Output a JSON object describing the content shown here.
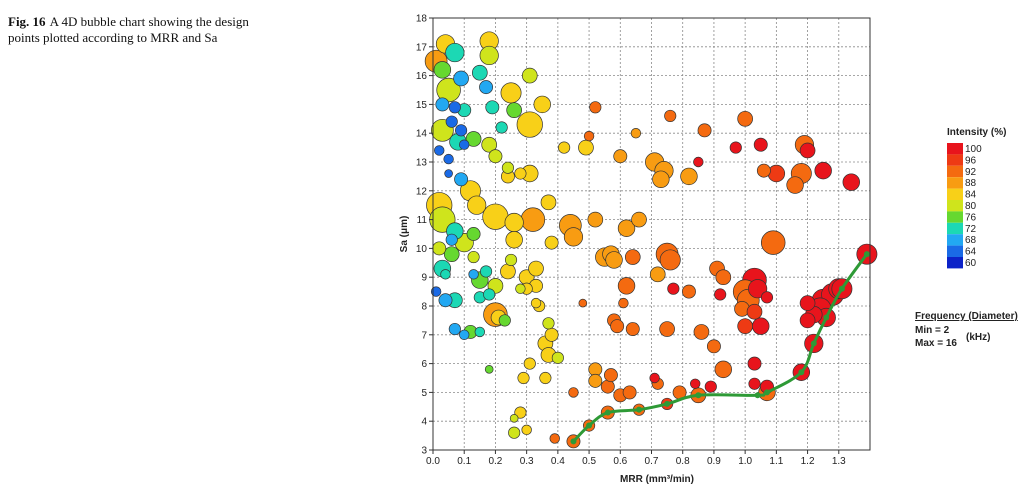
{
  "caption": {
    "label": "Fig. 16",
    "text": "A 4D bubble chart showing the design points plotted according to MRR and Sa"
  },
  "chart_data": {
    "type": "scatter",
    "xlabel": "MRR (mm³/min)",
    "ylabel": "Sa (μm)",
    "xlim": [
      0,
      1.4
    ],
    "ylim": [
      3,
      18
    ],
    "x_ticks": [
      "0.0",
      "0.1",
      "0.2",
      "0.3",
      "0.4",
      "0.5",
      "0.6",
      "0.7",
      "0.8",
      "0.9",
      "1.0",
      "1.1",
      "1.2",
      "1.3"
    ],
    "y_ticks": [
      "3",
      "4",
      "5",
      "6",
      "7",
      "8",
      "9",
      "10",
      "11",
      "12",
      "13",
      "14",
      "15",
      "16",
      "17",
      "18"
    ],
    "grid": true,
    "color_legend": {
      "title": "Intensity (%)",
      "labels": [
        "100",
        "96",
        "92",
        "88",
        "84",
        "80",
        "76",
        "72",
        "68",
        "64",
        "60"
      ],
      "colors": [
        "#e8141c",
        "#ee3a14",
        "#f46a10",
        "#f89c12",
        "#f8d018",
        "#cfe41c",
        "#66d830",
        "#1cd8b4",
        "#22a8f2",
        "#1a6ae6",
        "#0c22c8"
      ]
    },
    "size_legend": {
      "title": "Frequency (Diameter)",
      "min_label": "Min = 2",
      "max_label": "Max = 16",
      "unit": "(kHz)"
    },
    "pareto_front": [
      [
        0.45,
        3.3
      ],
      [
        0.5,
        3.85
      ],
      [
        0.56,
        4.3
      ],
      [
        0.66,
        4.4
      ],
      [
        0.75,
        4.6
      ],
      [
        0.85,
        4.9
      ],
      [
        1.04,
        4.9
      ],
      [
        1.07,
        5.0
      ],
      [
        1.18,
        5.7
      ],
      [
        1.22,
        6.7
      ],
      [
        1.26,
        7.6
      ],
      [
        1.31,
        8.6
      ],
      [
        1.39,
        9.8
      ]
    ],
    "points": [
      [
        0.01,
        16.5,
        88,
        10
      ],
      [
        0.04,
        17.1,
        84,
        8
      ],
      [
        0.07,
        16.8,
        72,
        8
      ],
      [
        0.03,
        16.2,
        76,
        7
      ],
      [
        0.09,
        15.9,
        68,
        6
      ],
      [
        0.05,
        15.5,
        80,
        11
      ],
      [
        0.03,
        15.0,
        68,
        5
      ],
      [
        0.07,
        14.9,
        64,
        4
      ],
      [
        0.1,
        14.8,
        72,
        5
      ],
      [
        0.06,
        14.4,
        64,
        4
      ],
      [
        0.09,
        14.1,
        64,
        4
      ],
      [
        0.03,
        14.1,
        80,
        10
      ],
      [
        0.08,
        13.7,
        72,
        7
      ],
      [
        0.13,
        13.8,
        76,
        6
      ],
      [
        0.1,
        13.6,
        64,
        3
      ],
      [
        0.02,
        13.4,
        64,
        3
      ],
      [
        0.05,
        13.1,
        64,
        3
      ],
      [
        0.05,
        12.6,
        64,
        2
      ],
      [
        0.09,
        12.4,
        68,
        5
      ],
      [
        0.18,
        17.2,
        84,
        8
      ],
      [
        0.18,
        16.7,
        80,
        8
      ],
      [
        0.15,
        16.1,
        72,
        6
      ],
      [
        0.17,
        15.6,
        68,
        5
      ],
      [
        0.31,
        16.0,
        80,
        6
      ],
      [
        0.25,
        15.4,
        84,
        9
      ],
      [
        0.19,
        14.9,
        72,
        5
      ],
      [
        0.26,
        14.8,
        76,
        6
      ],
      [
        0.35,
        15.0,
        84,
        7
      ],
      [
        0.22,
        14.2,
        72,
        4
      ],
      [
        0.31,
        14.3,
        84,
        12
      ],
      [
        0.18,
        13.6,
        80,
        6
      ],
      [
        0.2,
        13.2,
        80,
        5
      ],
      [
        0.24,
        12.8,
        80,
        4
      ],
      [
        0.28,
        12.6,
        84,
        4
      ],
      [
        0.02,
        11.5,
        84,
        12
      ],
      [
        0.03,
        11.0,
        80,
        12
      ],
      [
        0.12,
        12.0,
        84,
        9
      ],
      [
        0.14,
        11.5,
        84,
        8
      ],
      [
        0.07,
        10.6,
        72,
        7
      ],
      [
        0.06,
        10.3,
        68,
        4
      ],
      [
        0.1,
        10.2,
        80,
        8
      ],
      [
        0.13,
        10.5,
        76,
        5
      ],
      [
        0.2,
        11.1,
        84,
        12
      ],
      [
        0.26,
        10.9,
        84,
        8
      ],
      [
        0.26,
        10.3,
        84,
        7
      ],
      [
        0.24,
        12.5,
        84,
        5
      ],
      [
        0.31,
        12.6,
        84,
        7
      ],
      [
        0.37,
        11.6,
        84,
        6
      ],
      [
        0.32,
        11.0,
        88,
        11
      ],
      [
        0.38,
        10.2,
        84,
        5
      ],
      [
        0.02,
        10.0,
        80,
        5
      ],
      [
        0.03,
        9.3,
        72,
        7
      ],
      [
        0.04,
        9.1,
        72,
        3
      ],
      [
        0.06,
        9.8,
        76,
        6
      ],
      [
        0.13,
        9.7,
        80,
        4
      ],
      [
        0.13,
        9.1,
        68,
        3
      ],
      [
        0.15,
        8.9,
        76,
        7
      ],
      [
        0.17,
        9.2,
        72,
        4
      ],
      [
        0.2,
        8.7,
        80,
        6
      ],
      [
        0.25,
        9.6,
        80,
        4
      ],
      [
        0.24,
        9.2,
        84,
        6
      ],
      [
        0.3,
        9.0,
        84,
        6
      ],
      [
        0.33,
        9.3,
        84,
        6
      ],
      [
        0.33,
        8.7,
        84,
        5
      ],
      [
        0.3,
        8.6,
        84,
        4
      ],
      [
        0.28,
        8.6,
        80,
        3
      ],
      [
        0.01,
        8.5,
        64,
        3
      ],
      [
        0.04,
        8.2,
        68,
        5
      ],
      [
        0.07,
        8.2,
        72,
        6
      ],
      [
        0.15,
        8.3,
        72,
        4
      ],
      [
        0.18,
        8.4,
        72,
        4
      ],
      [
        0.2,
        7.7,
        88,
        11
      ],
      [
        0.21,
        7.6,
        84,
        6
      ],
      [
        0.34,
        8.0,
        84,
        4
      ],
      [
        0.33,
        8.1,
        84,
        3
      ],
      [
        0.23,
        7.5,
        76,
        4
      ],
      [
        0.37,
        7.4,
        80,
        4
      ],
      [
        0.38,
        7.0,
        84,
        5
      ],
      [
        0.36,
        6.7,
        84,
        6
      ],
      [
        0.07,
        7.2,
        68,
        4
      ],
      [
        0.12,
        7.1,
        76,
        5
      ],
      [
        0.1,
        7.0,
        68,
        3
      ],
      [
        0.15,
        7.1,
        72,
        3
      ],
      [
        0.37,
        6.3,
        84,
        6
      ],
      [
        0.4,
        6.2,
        80,
        4
      ],
      [
        0.31,
        6.0,
        84,
        4
      ],
      [
        0.18,
        5.8,
        76,
        2
      ],
      [
        0.29,
        5.5,
        84,
        4
      ],
      [
        0.36,
        5.5,
        84,
        4
      ],
      [
        0.28,
        4.3,
        84,
        4
      ],
      [
        0.26,
        4.1,
        80,
        2
      ],
      [
        0.26,
        3.6,
        80,
        4
      ],
      [
        0.3,
        3.7,
        84,
        3
      ],
      [
        0.39,
        3.4,
        92,
        3
      ],
      [
        0.45,
        5.0,
        92,
        3
      ],
      [
        0.52,
        14.9,
        92,
        4
      ],
      [
        0.5,
        13.9,
        92,
        3
      ],
      [
        0.42,
        13.5,
        84,
        4
      ],
      [
        0.49,
        13.5,
        84,
        6
      ],
      [
        0.6,
        13.2,
        88,
        5
      ],
      [
        0.65,
        14.0,
        88,
        3
      ],
      [
        0.76,
        14.6,
        92,
        4
      ],
      [
        0.87,
        14.1,
        92,
        5
      ],
      [
        0.71,
        13.0,
        88,
        8
      ],
      [
        0.74,
        12.7,
        88,
        8
      ],
      [
        0.73,
        12.4,
        88,
        7
      ],
      [
        0.82,
        12.5,
        88,
        7
      ],
      [
        0.85,
        13.0,
        100,
        3
      ],
      [
        0.97,
        13.5,
        100,
        4
      ],
      [
        1.0,
        14.5,
        92,
        6
      ],
      [
        1.05,
        13.6,
        100,
        5
      ],
      [
        1.19,
        13.6,
        92,
        8
      ],
      [
        1.2,
        13.4,
        100,
        6
      ],
      [
        1.1,
        12.6,
        96,
        7
      ],
      [
        1.16,
        12.2,
        92,
        7
      ],
      [
        1.18,
        12.6,
        92,
        9
      ],
      [
        1.25,
        12.7,
        100,
        7
      ],
      [
        1.34,
        12.3,
        100,
        7
      ],
      [
        1.06,
        12.7,
        92,
        5
      ],
      [
        0.44,
        10.8,
        88,
        10
      ],
      [
        0.45,
        10.4,
        88,
        8
      ],
      [
        0.52,
        11.0,
        88,
        6
      ],
      [
        0.62,
        10.7,
        88,
        7
      ],
      [
        0.66,
        11.0,
        88,
        6
      ],
      [
        0.57,
        9.8,
        88,
        7
      ],
      [
        0.55,
        9.7,
        88,
        8
      ],
      [
        0.58,
        9.6,
        88,
        7
      ],
      [
        0.64,
        9.7,
        92,
        6
      ],
      [
        0.62,
        8.7,
        92,
        7
      ],
      [
        0.75,
        9.8,
        92,
        10
      ],
      [
        0.76,
        9.6,
        92,
        9
      ],
      [
        0.72,
        9.1,
        88,
        6
      ],
      [
        0.77,
        8.6,
        100,
        4
      ],
      [
        0.82,
        8.5,
        92,
        5
      ],
      [
        0.91,
        9.3,
        92,
        6
      ],
      [
        0.93,
        9.0,
        92,
        6
      ],
      [
        0.92,
        8.4,
        100,
        4
      ],
      [
        1.03,
        8.9,
        100,
        11
      ],
      [
        1.04,
        8.6,
        100,
        8
      ],
      [
        1.0,
        8.5,
        92,
        11
      ],
      [
        1.01,
        8.2,
        92,
        10
      ],
      [
        1.07,
        8.3,
        100,
        4
      ],
      [
        1.09,
        10.2,
        92,
        11
      ],
      [
        0.48,
        8.1,
        92,
        2
      ],
      [
        0.61,
        8.1,
        92,
        3
      ],
      [
        0.58,
        7.5,
        92,
        5
      ],
      [
        0.59,
        7.3,
        92,
        5
      ],
      [
        0.64,
        7.2,
        92,
        5
      ],
      [
        0.75,
        7.2,
        92,
        6
      ],
      [
        0.86,
        7.1,
        92,
        6
      ],
      [
        0.99,
        7.9,
        92,
        6
      ],
      [
        1.03,
        7.8,
        96,
        6
      ],
      [
        1.0,
        7.3,
        96,
        6
      ],
      [
        1.05,
        7.3,
        100,
        7
      ],
      [
        0.9,
        6.6,
        92,
        5
      ],
      [
        0.93,
        5.8,
        92,
        7
      ],
      [
        1.03,
        6.0,
        100,
        5
      ],
      [
        0.52,
        5.8,
        88,
        5
      ],
      [
        0.52,
        5.4,
        88,
        5
      ],
      [
        0.56,
        5.2,
        92,
        5
      ],
      [
        0.57,
        5.6,
        92,
        5
      ],
      [
        0.6,
        4.9,
        92,
        5
      ],
      [
        0.63,
        5.0,
        92,
        5
      ],
      [
        0.71,
        5.5,
        100,
        3
      ],
      [
        0.72,
        5.3,
        92,
        4
      ],
      [
        0.79,
        5.0,
        92,
        5
      ],
      [
        0.84,
        5.3,
        100,
        3
      ],
      [
        0.89,
        5.2,
        100,
        4
      ],
      [
        1.03,
        5.3,
        100,
        4
      ],
      [
        1.07,
        5.2,
        100,
        5
      ],
      [
        1.2,
        8.1,
        100,
        6
      ],
      [
        1.22,
        7.7,
        100,
        7
      ],
      [
        1.25,
        8.2,
        100,
        10
      ],
      [
        1.28,
        8.4,
        100,
        10
      ],
      [
        1.24,
        7.9,
        100,
        10
      ],
      [
        1.2,
        7.5,
        100,
        6
      ],
      [
        1.3,
        8.6,
        100,
        9
      ],
      [
        0.45,
        3.3,
        92,
        5
      ],
      [
        0.5,
        3.85,
        92,
        4
      ],
      [
        0.56,
        4.3,
        92,
        5
      ],
      [
        0.66,
        4.4,
        92,
        4
      ],
      [
        0.75,
        4.6,
        96,
        4
      ],
      [
        0.85,
        4.9,
        92,
        6
      ],
      [
        1.07,
        5.0,
        92,
        7
      ],
      [
        1.18,
        5.7,
        100,
        7
      ],
      [
        1.22,
        6.7,
        100,
        8
      ],
      [
        1.26,
        7.6,
        100,
        8
      ],
      [
        1.31,
        8.6,
        100,
        9
      ],
      [
        1.39,
        9.8,
        100,
        9
      ]
    ]
  }
}
